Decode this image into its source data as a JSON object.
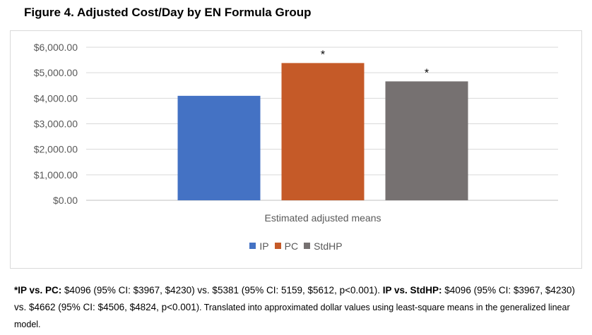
{
  "title": "Figure 4. Adjusted Cost/Day by EN Formula Group",
  "chart_data": {
    "type": "bar",
    "categories": [
      "Estimated adjusted means"
    ],
    "series": [
      {
        "name": "IP",
        "values": [
          4096
        ],
        "color": "#4472c4",
        "annotation": ""
      },
      {
        "name": "PC",
        "values": [
          5381
        ],
        "color": "#c55a28",
        "annotation": "*"
      },
      {
        "name": "StdHP",
        "values": [
          4662
        ],
        "color": "#767171",
        "annotation": "*"
      }
    ],
    "ylim": [
      0,
      6000
    ],
    "yticks": [
      "$0.00",
      "$1,000.00",
      "$2,000.00",
      "$3,000.00",
      "$4,000.00",
      "$5,000.00",
      "$6,000.00"
    ],
    "ytick_values": [
      0,
      1000,
      2000,
      3000,
      4000,
      5000,
      6000
    ],
    "xlabel": "",
    "ylabel": "",
    "grid": true,
    "legend_position": "bottom"
  },
  "footnote": {
    "part1_bold": "*IP vs. PC:",
    "part1_text": "  $4096 (95% CI: $3967, $4230) vs. $5381 (95% CI: 5159, $5612, p<0.001). ",
    "part2_bold": "IP vs. StdHP:",
    "part2_text": " $4096 (95% CI: $3967, $4230) vs. $4662 (95% CI: $4506, $4824, p<0.001",
    "part2_close": ").",
    "part3_text": " Translated into approximated dollar values using least-square means in the generalized linear model."
  }
}
